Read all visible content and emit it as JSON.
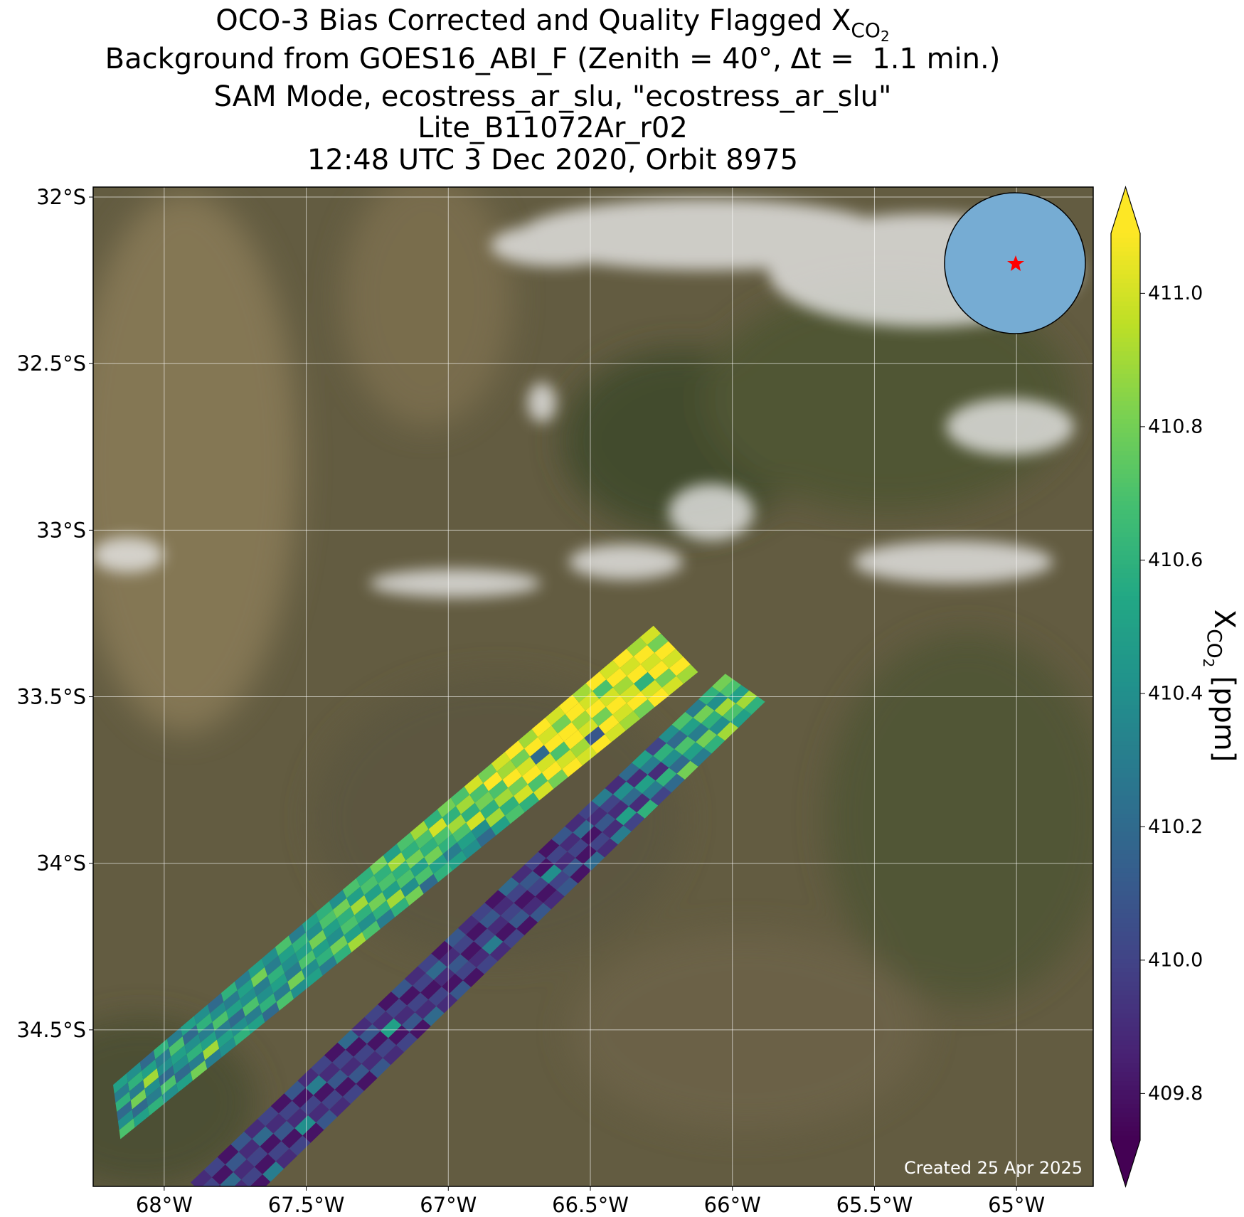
{
  "chart_data": {
    "type": "map",
    "title": {
      "text": "OCO-3 Bias Corrected and Quality Flagged X",
      "sub": "CO",
      "subsub": "2"
    },
    "subtitle": [
      "Background from GOES16_ABI_F (Zenith = 40°, Δt =  1.1 min.)",
      "SAM Mode, ecostress_ar_slu, \"ecostress_ar_slu\"",
      "Lite_B11072Ar_r02",
      "12:48 UTC 3 Dec 2020, Orbit 8975"
    ],
    "annotation": "Created 25 Apr 2025",
    "xlim": [
      -68.25,
      -64.73
    ],
    "ylim": [
      -34.97,
      -31.97
    ],
    "xticks": [
      {
        "value": -68,
        "label": "68°W"
      },
      {
        "value": -67.5,
        "label": "67.5°W"
      },
      {
        "value": -67,
        "label": "67°W"
      },
      {
        "value": -66.5,
        "label": "66.5°W"
      },
      {
        "value": -66,
        "label": "66°W"
      },
      {
        "value": -65.5,
        "label": "65.5°W"
      },
      {
        "value": -65,
        "label": "65°W"
      }
    ],
    "yticks": [
      {
        "value": -32,
        "label": "32°S"
      },
      {
        "value": -32.5,
        "label": "32.5°S"
      },
      {
        "value": -33,
        "label": "33°S"
      },
      {
        "value": -33.5,
        "label": "33.5°S"
      },
      {
        "value": -34,
        "label": "34°S"
      },
      {
        "value": -34.5,
        "label": "34.5°S"
      }
    ],
    "grid": true,
    "colormap": "viridis",
    "colorbar": {
      "label": {
        "text": "X",
        "sub": "CO",
        "subsub": "2",
        "unit": "[ppm]"
      },
      "clim": [
        409.73,
        411.09
      ],
      "ticks": [
        409.8,
        {
          "value": 410.0,
          "label": "410.0"
        },
        410.2,
        410.4,
        410.6,
        410.8,
        {
          "value": 411.0,
          "label": "411.0"
        }
      ],
      "extend": "both"
    },
    "swaths": [
      {
        "corners": [
          [
            -68.18,
            -34.665
          ],
          [
            -68.154,
            -34.828
          ],
          [
            -66.278,
            -33.287
          ],
          [
            -66.121,
            -33.426
          ]
        ],
        "values": [
          [
            410.5,
            410.3,
            410.6,
            410.2,
            410.4,
            410.7
          ],
          [
            410.4,
            410.6,
            410.3,
            410.8,
            410.2,
            410.5
          ],
          [
            410.2,
            410.5,
            410.9,
            410.4,
            410.3,
            410.6
          ],
          [
            410.6,
            410.3,
            410.4,
            410.2,
            410.7,
            410.4
          ],
          [
            410.3,
            410.7,
            410.5,
            410.4,
            410.2,
            410.5
          ],
          [
            410.5,
            410.2,
            410.4,
            410.6,
            410.3,
            410.8
          ],
          [
            410.4,
            410.6,
            410.3,
            410.5,
            410.9,
            410.3
          ],
          [
            410.2,
            410.4,
            410.7,
            410.3,
            410.5,
            410.4
          ],
          [
            410.6,
            410.3,
            410.5,
            410.2,
            410.4,
            410.6
          ],
          [
            410.3,
            410.5,
            410.4,
            410.7,
            410.3,
            410.5
          ],
          [
            410.5,
            410.8,
            410.3,
            410.4,
            410.6,
            410.2
          ],
          [
            410.4,
            410.3,
            410.6,
            410.5,
            410.3,
            410.7
          ],
          [
            410.7,
            410.5,
            410.4,
            410.3,
            410.8,
            410.4
          ],
          [
            410.3,
            410.6,
            410.5,
            410.7,
            410.4,
            410.5
          ],
          [
            410.5,
            410.4,
            410.8,
            410.5,
            410.6,
            410.3
          ],
          [
            410.6,
            410.7,
            410.5,
            410.4,
            410.8,
            410.6
          ],
          [
            410.4,
            410.8,
            410.6,
            410.7,
            410.5,
            410.9
          ],
          [
            410.7,
            410.5,
            410.9,
            410.6,
            410.4,
            410.7
          ],
          [
            410.6,
            410.7,
            410.5,
            410.8,
            410.6,
            410.3
          ],
          [
            410.8,
            410.6,
            410.7,
            410.5,
            410.9,
            410.6
          ],
          [
            410.5,
            410.9,
            410.6,
            410.7,
            410.4,
            410.8
          ],
          [
            410.7,
            410.6,
            410.8,
            410.5,
            410.7,
            410.2
          ],
          [
            410.9,
            410.7,
            410.6,
            410.8,
            410.5,
            410.6
          ],
          [
            410.6,
            411.0,
            410.7,
            410.6,
            410.3,
            410.5
          ],
          [
            410.8,
            410.6,
            410.9,
            410.7,
            410.5,
            410.4
          ],
          [
            410.7,
            410.9,
            410.6,
            411.0,
            410.4,
            410.2
          ],
          [
            411.0,
            410.7,
            410.8,
            410.6,
            410.9,
            410.5
          ],
          [
            410.8,
            411.1,
            410.7,
            410.9,
            410.6,
            410.7
          ],
          [
            411.0,
            410.9,
            411.1,
            410.8,
            411.0,
            410.6
          ],
          [
            411.1,
            410.8,
            411.0,
            411.1,
            410.7,
            411.0
          ],
          [
            410.9,
            411.1,
            410.2,
            411.0,
            411.1,
            410.8
          ],
          [
            411.1,
            411.0,
            411.1,
            410.7,
            411.0,
            411.1
          ],
          [
            411.0,
            410.8,
            411.1,
            411.1,
            410.9,
            411.0
          ],
          [
            411.1,
            411.1,
            410.9,
            411.0,
            410.1,
            411.1
          ],
          [
            410.9,
            411.0,
            411.1,
            410.8,
            411.1,
            411.0
          ],
          [
            411.1,
            410.7,
            411.0,
            411.1,
            411.0,
            410.9
          ],
          [
            411.0,
            411.1,
            410.9,
            411.0,
            411.1,
            410.8
          ],
          [
            411.1,
            411.0,
            411.1,
            410.6,
            411.0,
            411.1
          ],
          [
            410.9,
            411.1,
            411.0,
            411.1,
            410.8,
            411.0
          ],
          [
            411.0,
            410.8,
            411.1,
            411.0,
            411.1,
            410.9
          ]
        ]
      },
      {
        "corners": [
          [
            -67.907,
            -34.958
          ],
          [
            -67.767,
            -35.073
          ],
          [
            -66.025,
            -33.431
          ],
          [
            -65.885,
            -33.515
          ]
        ],
        "values": [
          [
            409.9,
            410.0,
            409.8,
            410.1,
            409.9
          ],
          [
            410.0,
            409.8,
            410.2,
            409.9,
            410.0
          ],
          [
            409.8,
            410.1,
            409.9,
            410.0,
            409.8
          ],
          [
            410.1,
            409.9,
            410.0,
            409.8,
            410.3
          ],
          [
            409.9,
            410.2,
            409.8,
            410.0,
            409.9
          ],
          [
            410.0,
            409.9,
            410.1,
            409.8,
            410.0
          ],
          [
            409.8,
            410.0,
            409.9,
            410.4,
            409.8
          ],
          [
            410.1,
            409.8,
            410.0,
            409.9,
            410.1
          ],
          [
            409.9,
            410.3,
            409.8,
            410.0,
            409.9
          ],
          [
            410.0,
            409.9,
            410.1,
            409.8,
            410.0
          ],
          [
            409.8,
            410.0,
            409.9,
            410.1,
            409.8
          ],
          [
            410.2,
            409.8,
            410.0,
            409.9,
            410.1
          ],
          [
            409.9,
            410.1,
            409.8,
            410.0,
            409.9
          ],
          [
            410.0,
            409.9,
            410.5,
            409.8,
            410.0
          ],
          [
            409.8,
            410.0,
            409.9,
            410.1,
            409.8
          ],
          [
            410.1,
            409.8,
            410.0,
            409.9,
            410.2
          ],
          [
            409.9,
            410.0,
            409.8,
            410.0,
            409.9
          ],
          [
            410.0,
            410.2,
            409.9,
            409.8,
            410.1
          ],
          [
            409.8,
            409.9,
            410.1,
            410.0,
            409.8
          ],
          [
            410.1,
            410.0,
            409.8,
            409.9,
            410.0
          ],
          [
            409.9,
            409.8,
            410.0,
            410.3,
            409.9
          ],
          [
            410.0,
            410.1,
            409.9,
            409.8,
            410.0
          ],
          [
            409.8,
            409.9,
            410.0,
            410.1,
            409.8
          ],
          [
            410.2,
            410.0,
            409.8,
            409.9,
            410.1
          ],
          [
            409.9,
            410.1,
            410.0,
            409.8,
            409.9
          ],
          [
            410.0,
            409.8,
            410.4,
            410.0,
            410.1
          ],
          [
            409.8,
            410.0,
            409.9,
            410.1,
            409.8
          ],
          [
            410.1,
            409.9,
            410.0,
            409.8,
            410.2
          ],
          [
            409.9,
            410.2,
            409.8,
            410.0,
            409.9
          ],
          [
            410.0,
            409.9,
            410.1,
            409.9,
            410.3
          ],
          [
            410.3,
            410.0,
            409.9,
            410.5,
            410.0
          ],
          [
            409.9,
            410.4,
            410.2,
            409.9,
            410.6
          ],
          [
            410.2,
            409.9,
            410.5,
            410.3,
            410.0
          ],
          [
            410.5,
            410.3,
            409.9,
            410.6,
            410.2
          ],
          [
            410.0,
            410.6,
            410.4,
            410.2,
            410.8
          ],
          [
            410.4,
            410.2,
            410.7,
            410.5,
            410.3
          ],
          [
            410.7,
            410.5,
            410.3,
            410.8,
            410.6
          ],
          [
            410.3,
            410.8,
            410.6,
            410.4,
            410.9
          ],
          [
            410.6,
            410.4,
            410.9,
            410.7,
            410.5
          ],
          [
            410.8,
            410.7,
            410.5,
            410.9,
            410.6
          ]
        ]
      }
    ]
  }
}
